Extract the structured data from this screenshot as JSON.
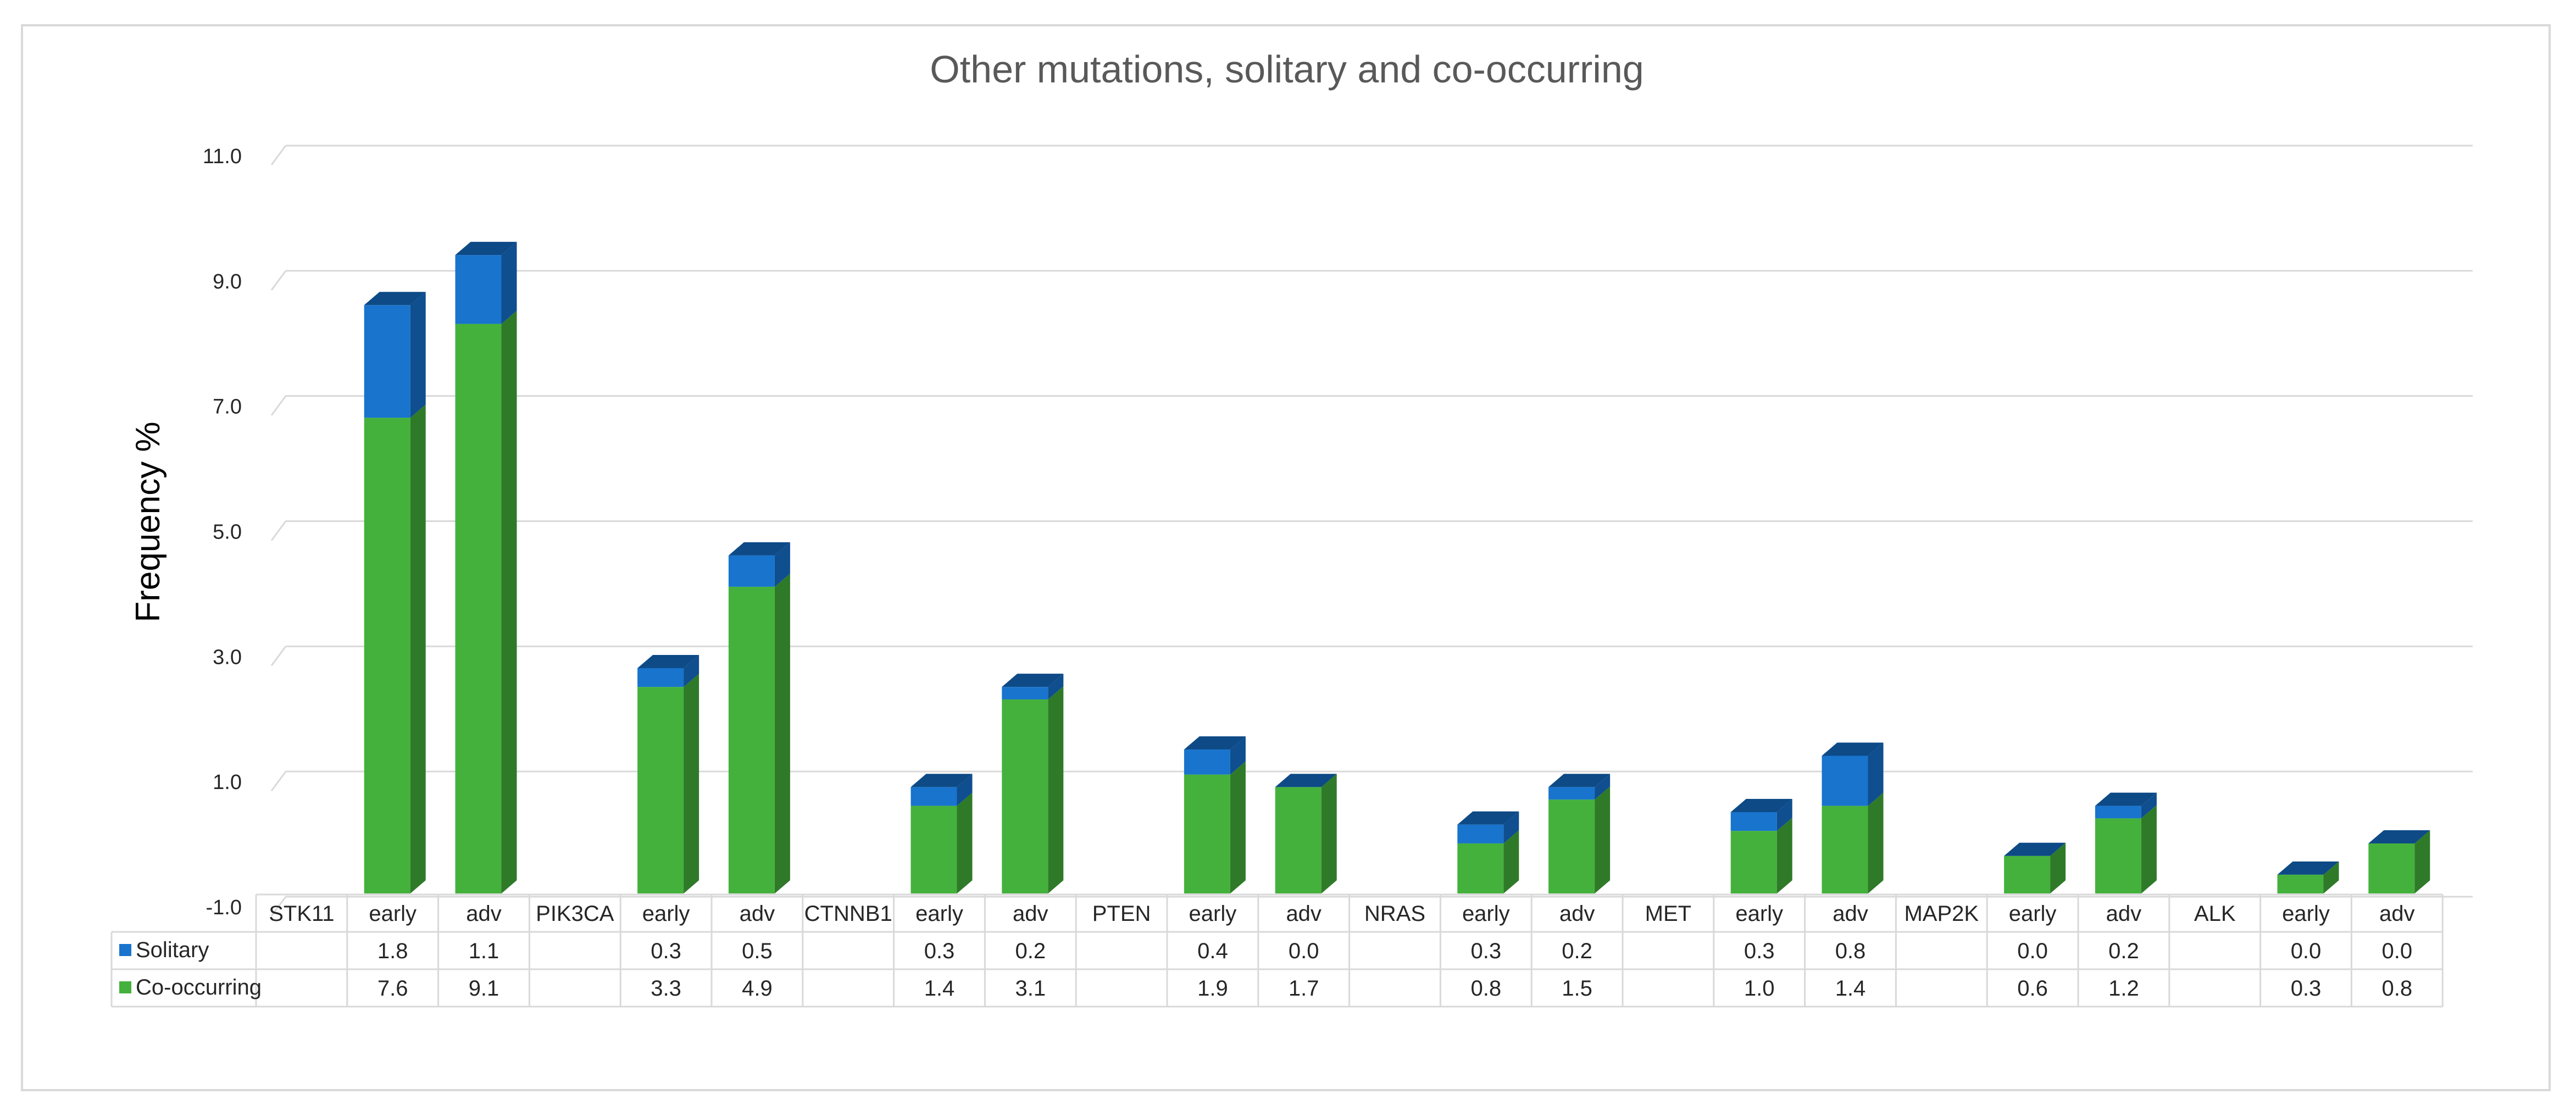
{
  "chart_data": {
    "type": "bar",
    "stacked": true,
    "three_d": true,
    "title": "Other mutations, solitary and co-occurring",
    "ylabel": "Frequency %",
    "xlabel": "",
    "ylim": [
      -1.0,
      11.0
    ],
    "yticks": [
      "-1.0",
      "1.0",
      "3.0",
      "5.0",
      "7.0",
      "9.0",
      "11.0"
    ],
    "grid": true,
    "legend_position": "data-table",
    "categories": [
      "STK11",
      "early",
      "adv",
      "PIK3CA",
      "early",
      "adv",
      "CTNNB1",
      "early",
      "adv",
      "PTEN",
      "early",
      "adv",
      "NRAS",
      "early",
      "adv",
      "MET",
      "early",
      "adv",
      "MAP2K",
      "early",
      "adv",
      "ALK",
      "early",
      "adv"
    ],
    "series": [
      {
        "name": "Co-occurring",
        "color": "#44b13c",
        "values": [
          null,
          7.6,
          9.1,
          null,
          3.3,
          4.9,
          null,
          1.4,
          3.1,
          null,
          1.9,
          1.7,
          null,
          0.8,
          1.5,
          null,
          1.0,
          1.4,
          null,
          0.6,
          1.2,
          null,
          0.3,
          0.8
        ],
        "labels": [
          "",
          "7.6",
          "9.1",
          "",
          "3.3",
          "4.9",
          "",
          "1.4",
          "3.1",
          "",
          "1.9",
          "1.7",
          "",
          "0.8",
          "1.5",
          "",
          "1.0",
          "1.4",
          "",
          "0.6",
          "1.2",
          "",
          "0.3",
          "0.8"
        ]
      },
      {
        "name": "Solitary",
        "color": "#1874cd",
        "values": [
          null,
          1.8,
          1.1,
          null,
          0.3,
          0.5,
          null,
          0.3,
          0.2,
          null,
          0.4,
          0.0,
          null,
          0.3,
          0.2,
          null,
          0.3,
          0.8,
          null,
          0.0,
          0.2,
          null,
          0.0,
          0.0
        ],
        "labels": [
          "",
          "1.8",
          "1.1",
          "",
          "0.3",
          "0.5",
          "",
          "0.3",
          "0.2",
          "",
          "0.4",
          "0.0",
          "",
          "0.3",
          "0.2",
          "",
          "0.3",
          "0.8",
          "",
          "0.0",
          "0.2",
          "",
          "0.0",
          "0.0"
        ]
      }
    ],
    "colors": {
      "gridline": "#d9d9d9",
      "table_border": "#d9d9d9",
      "green_side": "#2f7a29",
      "blue_side": "#0f4e8f",
      "blue_top": "#0d4a86"
    }
  }
}
